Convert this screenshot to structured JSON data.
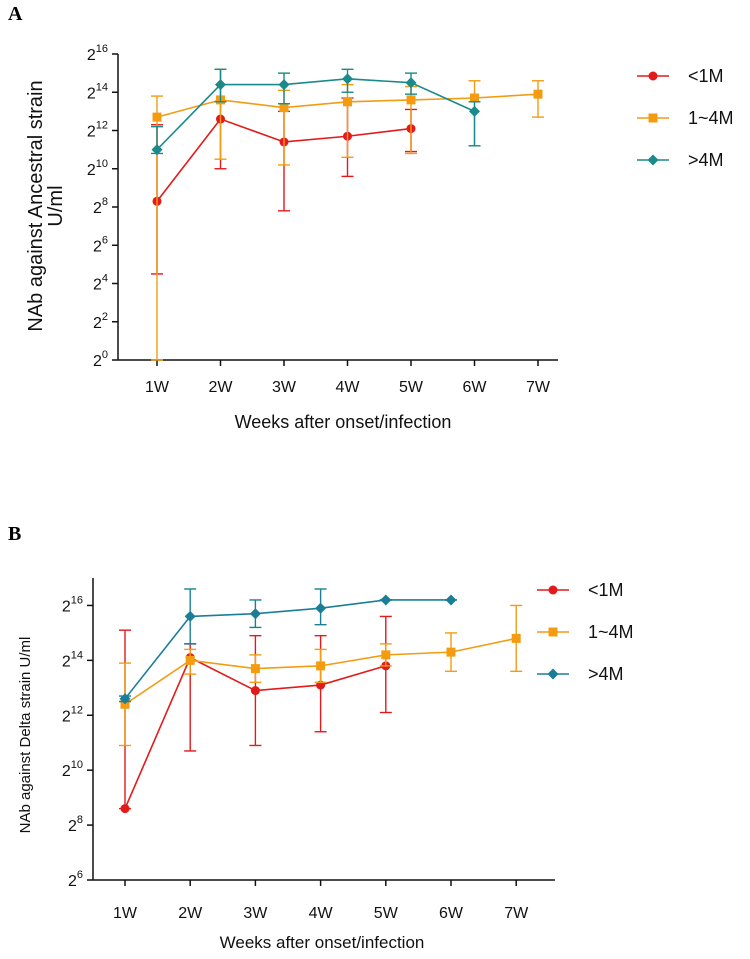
{
  "chart_data": [
    {
      "panel_label": "A",
      "type": "line",
      "scale": "log2",
      "ylabel_line1": "NAb against Ancestral strain",
      "ylabel_line2": "U/ml",
      "xlabel": "Weeks after onset/infection",
      "categories": [
        "1W",
        "2W",
        "3W",
        "4W",
        "5W",
        "6W",
        "7W"
      ],
      "ylim_exp": [
        0,
        16
      ],
      "ytick_exps": [
        0,
        2,
        4,
        6,
        8,
        10,
        12,
        14,
        16
      ],
      "legend_position": "top-right",
      "series": [
        {
          "name": "<1M",
          "color": "#e31a1c",
          "marker": "circle",
          "exp": [
            8.3,
            12.6,
            11.4,
            11.7,
            12.1,
            null,
            null
          ],
          "err_lo": [
            4.5,
            10.0,
            7.8,
            9.6,
            10.9,
            null,
            null
          ],
          "err_hi": [
            12.3,
            15.2,
            13.0,
            13.7,
            13.1,
            null,
            null
          ]
        },
        {
          "name": "1~4M",
          "color": "#f39c12",
          "marker": "square",
          "exp": [
            12.7,
            13.6,
            13.2,
            13.5,
            13.6,
            13.7,
            13.9
          ],
          "err_lo": [
            0.0,
            10.5,
            10.2,
            10.6,
            10.8,
            11.2,
            12.7
          ],
          "err_hi": [
            13.8,
            15.2,
            14.1,
            14.4,
            14.3,
            14.6,
            14.6
          ]
        },
        {
          "name": ">4M",
          "color": "#1a8a8a",
          "marker": "diamond",
          "exp": [
            11.0,
            14.4,
            14.4,
            14.7,
            14.5,
            13.0,
            null
          ],
          "err_lo": [
            10.8,
            13.5,
            13.4,
            14.0,
            13.9,
            11.2,
            null
          ],
          "err_hi": [
            12.2,
            15.2,
            15.0,
            15.2,
            15.0,
            13.5,
            null
          ]
        }
      ]
    },
    {
      "panel_label": "B",
      "type": "line",
      "scale": "log2",
      "ylabel_line1": "NAb against Delta strain U/ml",
      "ylabel_line2": "",
      "xlabel": "Weeks after onset/infection",
      "categories": [
        "1W",
        "2W",
        "3W",
        "4W",
        "5W",
        "6W",
        "7W"
      ],
      "ylim_exp": [
        6,
        17
      ],
      "ytick_exps": [
        6,
        8,
        10,
        12,
        14,
        16
      ],
      "legend_position": "top-right",
      "series": [
        {
          "name": "<1M",
          "color": "#e31a1c",
          "marker": "circle",
          "exp": [
            8.6,
            14.1,
            12.9,
            13.1,
            13.8,
            null,
            null
          ],
          "err_lo": [
            8.6,
            10.7,
            10.9,
            11.4,
            12.1,
            null,
            null
          ],
          "err_hi": [
            15.1,
            14.6,
            14.9,
            14.9,
            15.6,
            null,
            null
          ]
        },
        {
          "name": "1~4M",
          "color": "#f39c12",
          "marker": "square",
          "exp": [
            12.4,
            14.0,
            13.7,
            13.8,
            14.2,
            14.3,
            14.8
          ],
          "err_lo": [
            10.9,
            13.5,
            13.2,
            13.2,
            13.8,
            13.6,
            13.6
          ],
          "err_hi": [
            13.9,
            14.4,
            14.2,
            14.4,
            14.6,
            15.0,
            16.0
          ]
        },
        {
          "name": ">4M",
          "color": "#1a7f96",
          "marker": "diamond",
          "exp": [
            12.6,
            15.6,
            15.7,
            15.9,
            16.2,
            16.2,
            null
          ],
          "err_lo": [
            12.5,
            14.6,
            15.2,
            15.3,
            16.2,
            16.2,
            null
          ],
          "err_hi": [
            12.7,
            16.6,
            16.2,
            16.6,
            16.2,
            16.2,
            null
          ]
        }
      ]
    }
  ]
}
